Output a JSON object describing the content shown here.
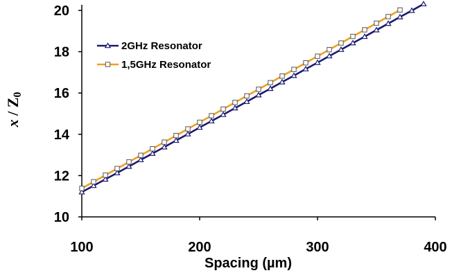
{
  "chart_data": {
    "type": "line",
    "xlabel": "Spacing (µm)",
    "ylabel": {
      "var": "x",
      "sep": " / ",
      "sym": "Z",
      "sub": "0"
    },
    "xlim": [
      100,
      400
    ],
    "ylim": [
      10,
      20
    ],
    "x_ticks": [
      "100",
      "200",
      "300",
      "400"
    ],
    "y_ticks": [
      "10",
      "12",
      "14",
      "16",
      "18",
      "20"
    ],
    "grid": false,
    "legend_position": "top-left",
    "series": [
      {
        "name": "2GHz Resonator",
        "color": "#1a1a6e",
        "marker": "triangle",
        "x": [
          100,
          110,
          120,
          130,
          140,
          150,
          160,
          170,
          180,
          190,
          200,
          210,
          220,
          230,
          240,
          250,
          260,
          270,
          280,
          290,
          300,
          310,
          320,
          330,
          340,
          350,
          360,
          370,
          380,
          390
        ],
        "y": [
          11.2,
          11.51,
          11.82,
          12.13,
          12.44,
          12.76,
          13.07,
          13.38,
          13.7,
          14.01,
          14.33,
          14.64,
          14.95,
          15.27,
          15.58,
          15.9,
          16.21,
          16.53,
          16.84,
          17.16,
          17.47,
          17.79,
          18.1,
          18.42,
          18.73,
          19.05,
          19.36,
          19.68,
          19.99,
          20.31
        ]
      },
      {
        "name": "1,5GHz Resonator",
        "color": "#f0a020",
        "marker": "square",
        "x": [
          100,
          110,
          120,
          130,
          140,
          150,
          160,
          170,
          180,
          190,
          200,
          210,
          220,
          230,
          240,
          250,
          260,
          270,
          280,
          290,
          300,
          310,
          320,
          330,
          340,
          350,
          360,
          370
        ],
        "y": [
          11.38,
          11.7,
          12.02,
          12.34,
          12.66,
          12.98,
          13.3,
          13.62,
          13.94,
          14.26,
          14.58,
          14.9,
          15.22,
          15.54,
          15.86,
          16.18,
          16.5,
          16.82,
          17.14,
          17.46,
          17.78,
          18.1,
          18.42,
          18.74,
          19.06,
          19.38,
          19.7,
          20.02
        ]
      }
    ]
  }
}
